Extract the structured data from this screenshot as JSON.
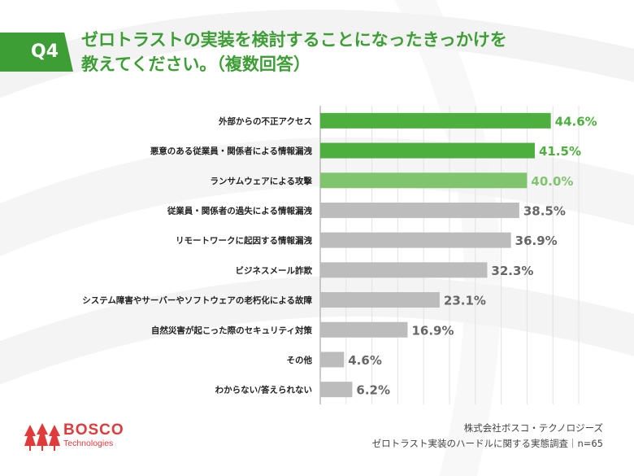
{
  "header": {
    "badge": "Q4",
    "title_line1": "ゼロトラストの実装を検討することになったきっかけを",
    "title_line2": "教えてください。（複数回答）"
  },
  "footer": {
    "company": "株式会社ボスコ・テクノロジーズ",
    "survey": "ゼロトラスト実装のハードルに関する実態調査｜n=65"
  },
  "logo": {
    "name": "BOSCO",
    "sub": "Technologies",
    "color": "#e03a3a"
  },
  "colors": {
    "accent": "#3e9e36",
    "highlight_top": "#4caf3e",
    "highlight_third": "#80c46e",
    "gray": "#bcbcbc"
  },
  "chart_data": {
    "type": "bar",
    "orientation": "horizontal",
    "categories": [
      "外部からの不正アクセス",
      "悪意のある従業員・関係者による情報漏洩",
      "ランサムウェアによる攻撃",
      "従業員・関係者の過失による情報漏洩",
      "リモートワークに起因する情報漏洩",
      "ビジネスメール詐欺",
      "システム障害やサーバーやソフトウェアの老朽化による故障",
      "自然災害が起こった際のセキュリティ対策",
      "その他",
      "わからない/答えられない"
    ],
    "values": [
      44.6,
      41.5,
      40.0,
      38.5,
      36.9,
      32.3,
      23.1,
      16.9,
      4.6,
      6.2
    ],
    "labels": [
      "44.6%",
      "41.5%",
      "40.0%",
      "38.5%",
      "36.9%",
      "32.3%",
      "23.1%",
      "16.9%",
      "4.6%",
      "6.2%"
    ],
    "highlighted": [
      true,
      true,
      true,
      false,
      false,
      false,
      false,
      false,
      false,
      false
    ],
    "xlim": [
      0,
      50
    ],
    "grid": true,
    "legend": "none"
  }
}
